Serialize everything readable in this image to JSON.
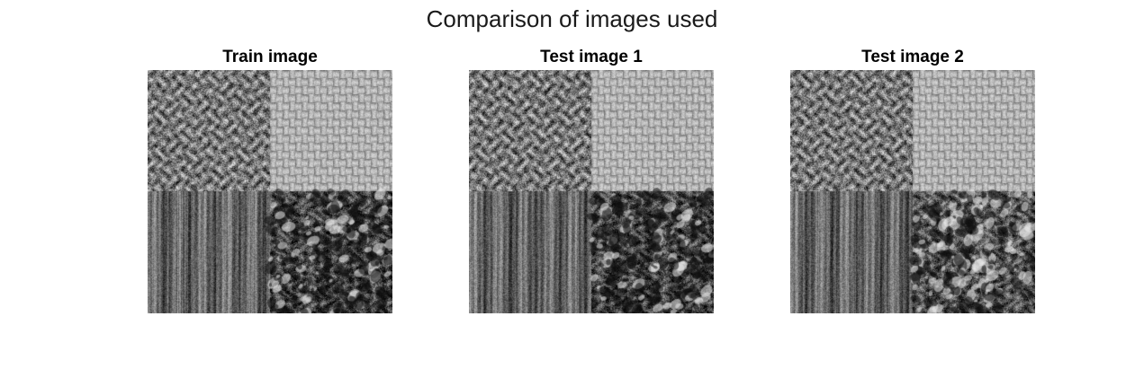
{
  "figure": {
    "title": "Comparison of images used"
  },
  "panels": [
    {
      "title": "Train image",
      "quadrants": [
        "rough-stone",
        "woven-fabric",
        "wood-grain",
        "dark-porous"
      ],
      "seed": 11
    },
    {
      "title": "Test image 1",
      "quadrants": [
        "rough-stone",
        "woven-fabric",
        "wood-grain",
        "dark-porous"
      ],
      "seed": 23
    },
    {
      "title": "Test image 2",
      "quadrants": [
        "rough-stone",
        "woven-fabric",
        "wood-grain",
        "speckled-porous"
      ],
      "seed": 37
    }
  ]
}
